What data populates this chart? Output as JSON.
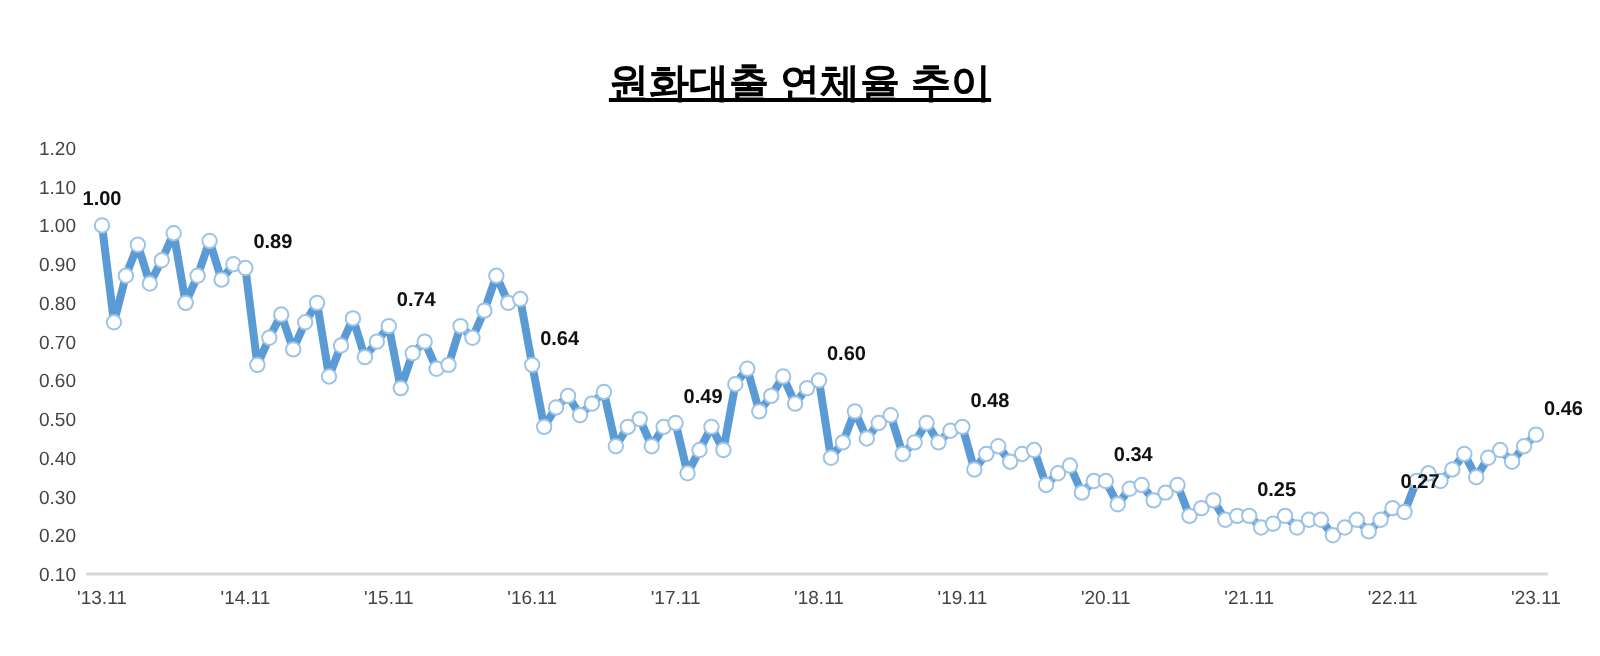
{
  "chart_data": {
    "type": "line",
    "title": "원화대출 연체율 추이",
    "categories": [
      "'13.11",
      null,
      null,
      null,
      null,
      null,
      null,
      null,
      null,
      null,
      null,
      null,
      "'14.11",
      null,
      null,
      null,
      null,
      null,
      null,
      null,
      null,
      null,
      null,
      null,
      "'15.11",
      null,
      null,
      null,
      null,
      null,
      null,
      null,
      null,
      null,
      null,
      null,
      "'16.11",
      null,
      null,
      null,
      null,
      null,
      null,
      null,
      null,
      null,
      null,
      null,
      "'17.11",
      null,
      null,
      null,
      null,
      null,
      null,
      null,
      null,
      null,
      null,
      null,
      "'18.11",
      null,
      null,
      null,
      null,
      null,
      null,
      null,
      null,
      null,
      null,
      null,
      "'19.11",
      null,
      null,
      null,
      null,
      null,
      null,
      null,
      null,
      null,
      null,
      null,
      "'20.11",
      null,
      null,
      null,
      null,
      null,
      null,
      null,
      null,
      null,
      null,
      null,
      "'21.11",
      null,
      null,
      null,
      null,
      null,
      null,
      null,
      null,
      null,
      null,
      null,
      "'22.11",
      null,
      null,
      null,
      null,
      null,
      null,
      null,
      null,
      null,
      null,
      null,
      "'23.11"
    ],
    "series": [
      {
        "color": "#5b9bd5",
        "values": [
          1.0,
          0.75,
          0.87,
          0.95,
          0.85,
          0.91,
          0.98,
          0.8,
          0.87,
          0.96,
          0.86,
          0.9,
          0.89,
          0.64,
          0.71,
          0.77,
          0.68,
          0.75,
          0.8,
          0.61,
          0.69,
          0.76,
          0.66,
          0.7,
          0.74,
          0.58,
          0.67,
          0.7,
          0.63,
          0.64,
          0.74,
          0.71,
          0.78,
          0.87,
          0.8,
          0.81,
          0.64,
          0.48,
          0.53,
          0.56,
          0.51,
          0.54,
          0.57,
          0.43,
          0.48,
          0.5,
          0.43,
          0.48,
          0.49,
          0.36,
          0.42,
          0.48,
          0.42,
          0.59,
          0.63,
          0.52,
          0.56,
          0.61,
          0.54,
          0.58,
          0.6,
          0.4,
          0.44,
          0.52,
          0.45,
          0.49,
          0.51,
          0.41,
          0.44,
          0.49,
          0.44,
          0.47,
          0.48,
          0.37,
          0.41,
          0.43,
          0.39,
          0.41,
          0.42,
          0.33,
          0.36,
          0.38,
          0.31,
          0.34,
          0.34,
          0.28,
          0.32,
          0.33,
          0.29,
          0.31,
          0.33,
          0.25,
          0.27,
          0.29,
          0.24,
          0.25,
          0.25,
          0.22,
          0.23,
          0.25,
          0.22,
          0.24,
          0.24,
          0.2,
          0.22,
          0.24,
          0.21,
          0.24,
          0.27,
          0.26,
          0.34,
          0.36,
          0.34,
          0.37,
          0.41,
          0.35,
          0.4,
          0.42,
          0.39,
          0.43,
          0.46
        ],
        "value_labels": [
          "1.00",
          null,
          null,
          null,
          null,
          null,
          null,
          null,
          null,
          null,
          null,
          null,
          "0.89",
          null,
          null,
          null,
          null,
          null,
          null,
          null,
          null,
          null,
          null,
          null,
          "0.74",
          null,
          null,
          null,
          null,
          null,
          null,
          null,
          null,
          null,
          null,
          null,
          "0.64",
          null,
          null,
          null,
          null,
          null,
          null,
          null,
          null,
          null,
          null,
          null,
          "0.49",
          null,
          null,
          null,
          null,
          null,
          null,
          null,
          null,
          null,
          null,
          null,
          "0.60",
          null,
          null,
          null,
          null,
          null,
          null,
          null,
          null,
          null,
          null,
          null,
          "0.48",
          null,
          null,
          null,
          null,
          null,
          null,
          null,
          null,
          null,
          null,
          null,
          "0.34",
          null,
          null,
          null,
          null,
          null,
          null,
          null,
          null,
          null,
          null,
          null,
          "0.25",
          null,
          null,
          null,
          null,
          null,
          null,
          null,
          null,
          null,
          null,
          null,
          "0.27",
          null,
          null,
          null,
          null,
          null,
          null,
          null,
          null,
          null,
          null,
          null,
          "0.46"
        ]
      }
    ],
    "ylim": [
      0.1,
      1.2
    ],
    "yticks": [
      {
        "value": 0.1,
        "label": "0.10"
      },
      {
        "value": 0.2,
        "label": "0.20"
      },
      {
        "value": 0.3,
        "label": "0.30"
      },
      {
        "value": 0.4,
        "label": "0.40"
      },
      {
        "value": 0.5,
        "label": "0.50"
      },
      {
        "value": 0.6,
        "label": "0.60"
      },
      {
        "value": 0.7,
        "label": "0.70"
      },
      {
        "value": 0.8,
        "label": "0.80"
      },
      {
        "value": 0.9,
        "label": "0.90"
      },
      {
        "value": 1.0,
        "label": "1.00"
      },
      {
        "value": 1.1,
        "label": "1.10"
      },
      {
        "value": 1.2,
        "label": "1.20"
      }
    ],
    "marker": "circle",
    "line_style": "solid"
  }
}
